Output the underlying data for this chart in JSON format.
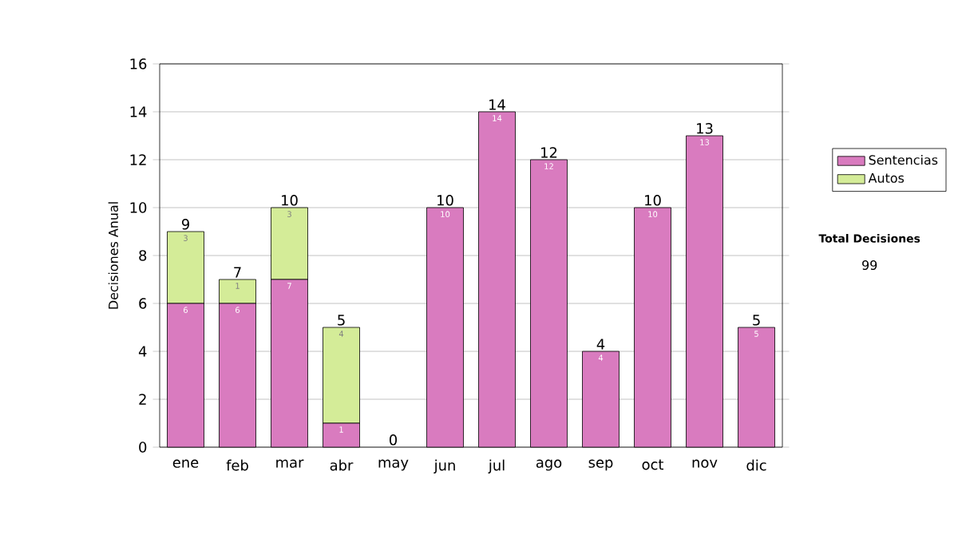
{
  "chart_data": {
    "type": "bar",
    "stacked": true,
    "ylabel": "Decisiones Anual",
    "categories": [
      "ene",
      "feb",
      "mar",
      "abr",
      "may",
      "jun",
      "jul",
      "ago",
      "sep",
      "oct",
      "nov",
      "dic"
    ],
    "series": [
      {
        "name": "Sentencias",
        "color": "#d97bbf",
        "values": [
          6,
          6,
          7,
          1,
          0,
          10,
          14,
          12,
          4,
          10,
          13,
          5
        ],
        "value_labels": [
          "6",
          "6",
          "7",
          "1",
          null,
          "10",
          "14",
          "12",
          "4",
          "10",
          "13",
          "5"
        ]
      },
      {
        "name": "Autos",
        "color": "#d4ec98",
        "values": [
          3,
          1,
          3,
          4,
          0,
          0,
          0,
          0,
          0,
          0,
          0,
          0
        ],
        "value_labels": [
          "3",
          "1",
          "3",
          "4",
          null,
          null,
          null,
          null,
          null,
          null,
          null,
          null
        ]
      }
    ],
    "totals": [
      "9",
      "7",
      "10",
      "5",
      "0",
      "10",
      "14",
      "12",
      "4",
      "10",
      "13",
      "5"
    ],
    "ylim": [
      0,
      16
    ],
    "yticks": [
      0,
      2,
      4,
      6,
      8,
      10,
      12,
      14,
      16
    ],
    "grid": "y",
    "legend": "right",
    "annotations": [
      "Total Decisiones",
      "99"
    ]
  }
}
